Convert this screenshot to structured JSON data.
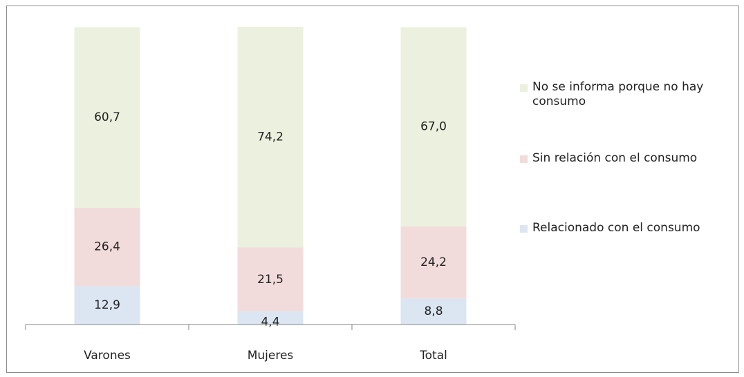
{
  "chart_data": {
    "type": "stacked_bar",
    "categories": [
      "Varones",
      "Mujeres",
      "Total"
    ],
    "series": [
      {
        "name": "Relacionado con el consumo",
        "color": "#dce6f2",
        "values": [
          12.9,
          4.4,
          8.8
        ],
        "value_labels": [
          "12,9",
          "4,4",
          "8,8"
        ]
      },
      {
        "name": "Sin relación con el consumo",
        "color": "#f2dcdb",
        "values": [
          26.4,
          21.5,
          24.2
        ],
        "value_labels": [
          "26,4",
          "21,5",
          "24,2"
        ]
      },
      {
        "name": "No se informa porque no hay consumo",
        "color": "#ebf1de",
        "values": [
          60.7,
          74.2,
          67.0
        ],
        "value_labels": [
          "60,7",
          "74,2",
          "67,0"
        ]
      }
    ],
    "legend": "right"
  }
}
